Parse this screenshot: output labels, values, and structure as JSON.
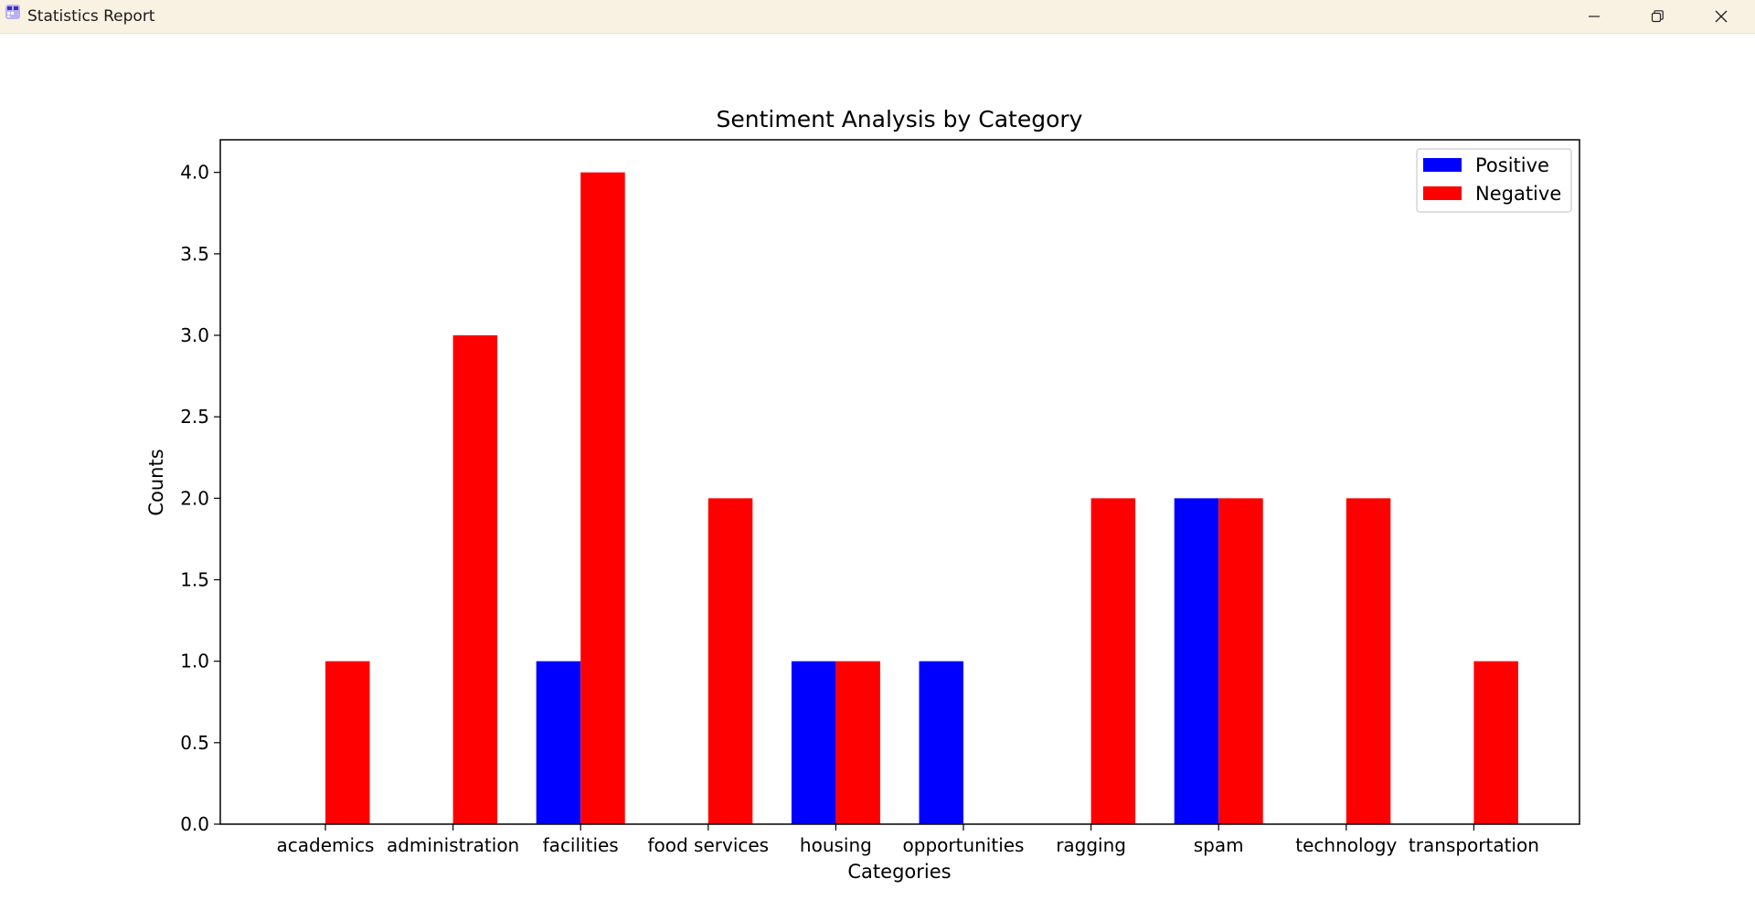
{
  "window": {
    "title": "Statistics Report",
    "icon": "chart-app-icon",
    "controls": [
      "minimize-icon",
      "restore-icon",
      "close-icon"
    ]
  },
  "chart_data": {
    "type": "bar",
    "title": "Sentiment Analysis by Category",
    "xlabel": "Categories",
    "ylabel": "Counts",
    "categories": [
      "academics",
      "administration",
      "facilities",
      "food services",
      "housing",
      "opportunities",
      "ragging",
      "spam",
      "technology",
      "transportation"
    ],
    "series": [
      {
        "name": "Positive",
        "color": "#0000ff",
        "values": [
          0,
          0,
          1,
          0,
          1,
          1,
          0,
          2,
          0,
          0
        ]
      },
      {
        "name": "Negative",
        "color": "#ff0000",
        "values": [
          1,
          3,
          4,
          2,
          1,
          0,
          2,
          2,
          2,
          1
        ]
      }
    ],
    "ylim": [
      0,
      4.2
    ],
    "yticks": [
      0.0,
      0.5,
      1.0,
      1.5,
      2.0,
      2.5,
      3.0,
      3.5,
      4.0
    ],
    "grid": false,
    "legend_position": "top-right"
  }
}
